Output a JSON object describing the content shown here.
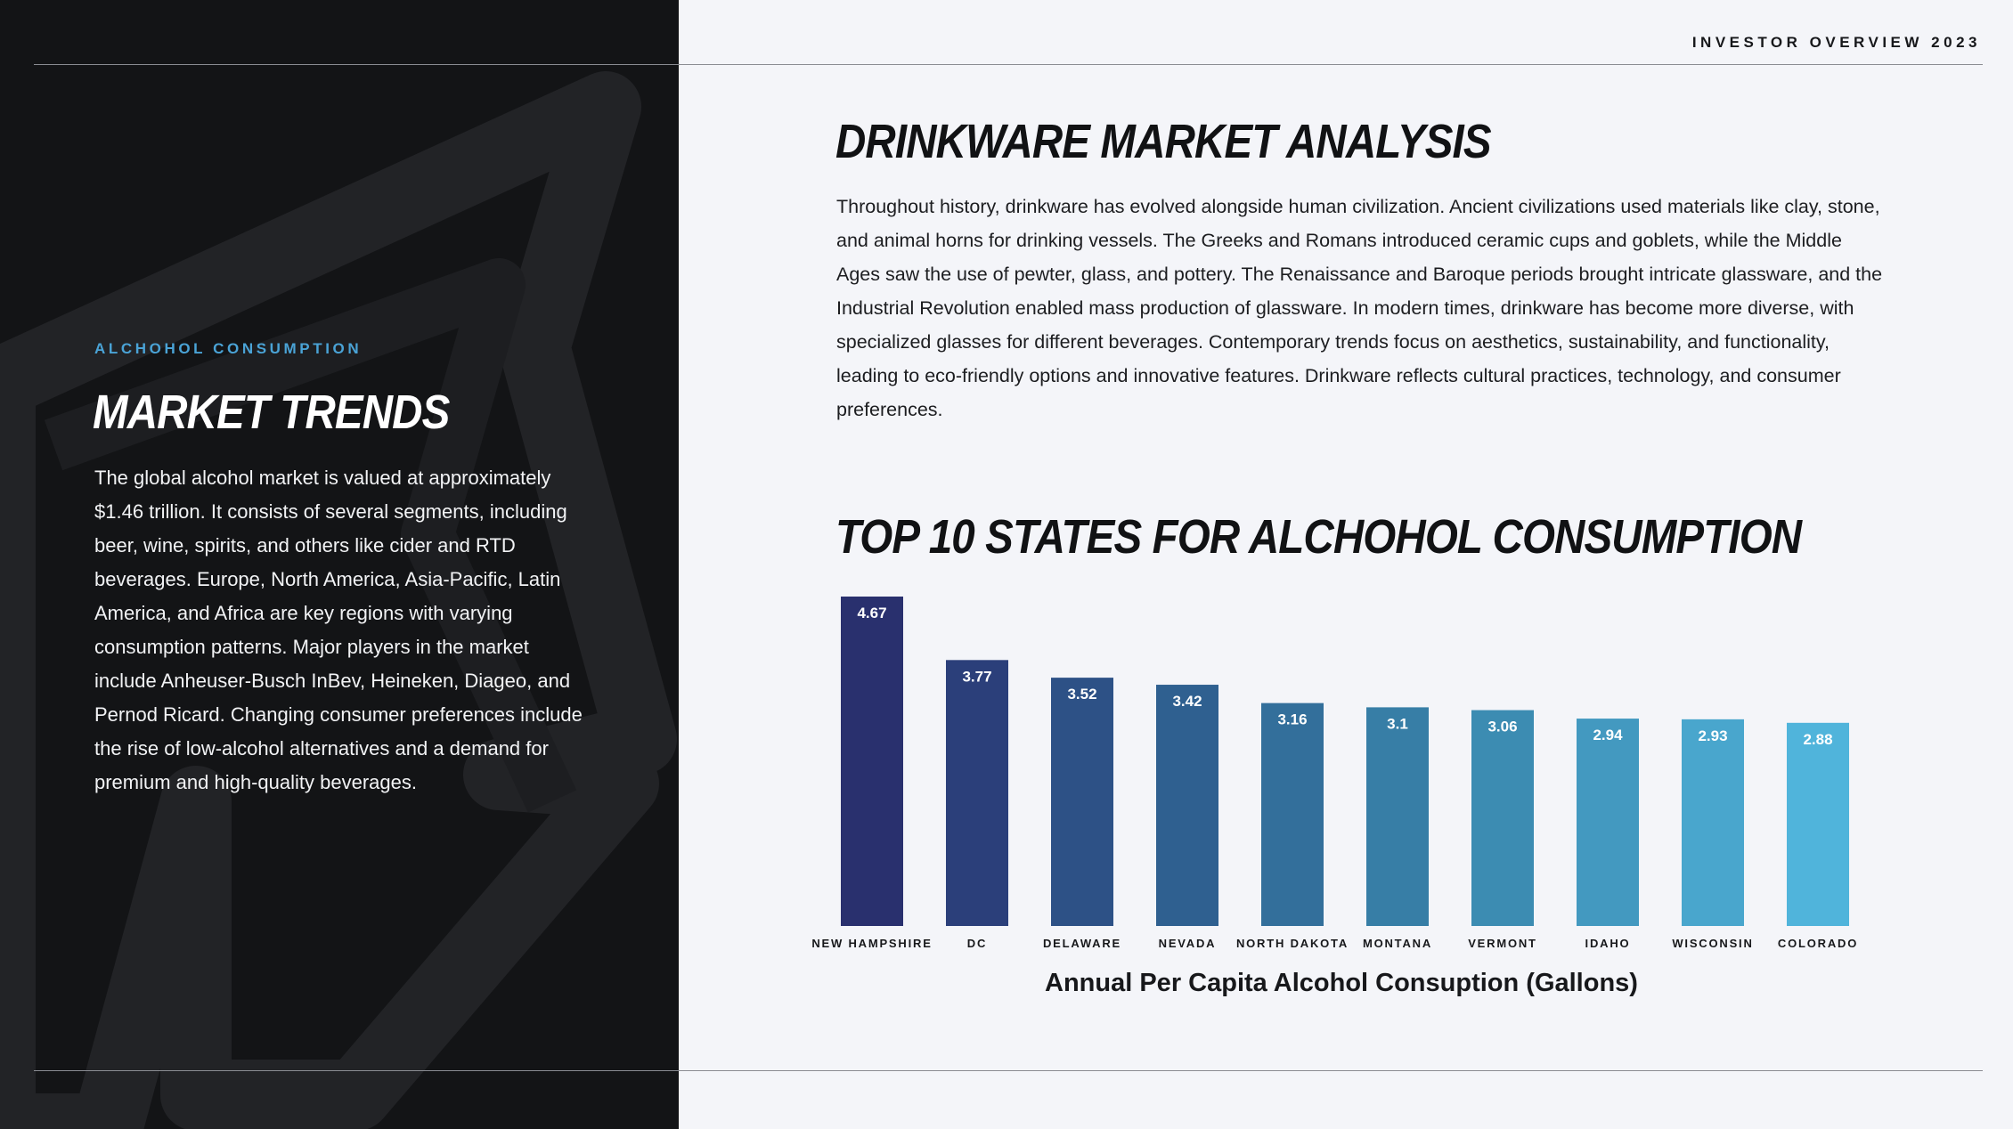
{
  "header": {
    "label": "INVESTOR OVERVIEW 2023"
  },
  "left": {
    "kicker": "ALCHOHOL CONSUMPTION",
    "title": "MARKET TRENDS",
    "body": "The global alcohol market is valued at approximately $1.46 trillion. It consists of several segments, including beer, wine, spirits, and others like cider and RTD beverages. Europe, North America, Asia-Pacific, Latin America, and Africa are key regions with varying consumption patterns. Major players in the market include Anheuser-Busch InBev, Heineken, Diageo, and Pernod Ricard. Changing consumer preferences include the rise of low-alcohol alternatives and a demand for premium and high-quality beverages."
  },
  "right": {
    "title": "DRINKWARE MARKET ANALYSIS",
    "body": "Throughout history, drinkware has evolved alongside human civilization. Ancient civilizations used materials like clay, stone, and animal horns for drinking vessels. The Greeks and Romans introduced ceramic cups and goblets, while the Middle Ages saw the use of pewter, glass, and pottery. The Renaissance and Baroque periods brought intricate glassware, and the Industrial Revolution enabled mass production of glassware. In modern times, drinkware has become more diverse, with specialized glasses for different beverages. Contemporary trends focus on aesthetics, sustainability, and functionality, leading to eco-friendly options and innovative features. Drinkware reflects cultural practices, technology, and consumer preferences."
  },
  "chart_data": {
    "type": "bar",
    "title": "TOP 10 STATES FOR ALCHOHOL CONSUMPTION",
    "xlabel": "Annual Per Capita Alcohol Consuption (Gallons)",
    "ylabel": "",
    "categories": [
      "NEW HAMPSHIRE",
      "DC",
      "DELAWARE",
      "NEVADA",
      "NORTH DAKOTA",
      "MONTANA",
      "VERMONT",
      "IDAHO",
      "WISCONSIN",
      "COLORADO"
    ],
    "values": [
      4.67,
      3.77,
      3.52,
      3.42,
      3.16,
      3.1,
      3.06,
      2.94,
      2.93,
      2.88
    ],
    "value_labels": [
      "4.67",
      "3.77",
      "3.52",
      "3.42",
      "3.16",
      "3.1",
      "3.06",
      "2.94",
      "2.93",
      "2.88"
    ],
    "colors": [
      "#29306e",
      "#2b3f7a",
      "#2d5186",
      "#2f6090",
      "#336f9b",
      "#377ea6",
      "#3c8cb2",
      "#4399c0",
      "#49a6cd",
      "#50b4db"
    ],
    "ylim": [
      0,
      4.67
    ],
    "grid": false,
    "legend": "none",
    "data_labels": "inside-top"
  },
  "theme": {
    "dark_panel": "#131416",
    "accent": "#4aa3d6",
    "light_bg": "#f4f5f9"
  }
}
